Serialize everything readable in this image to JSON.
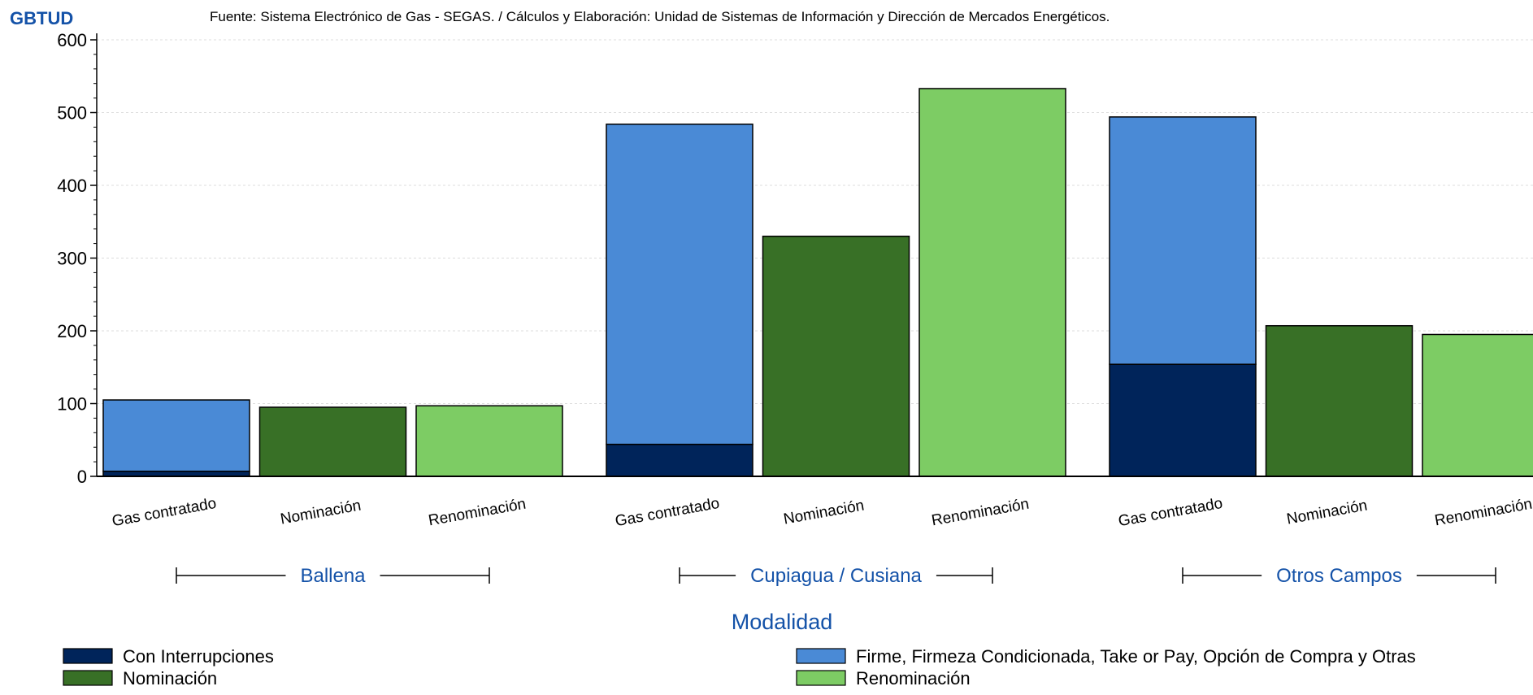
{
  "chart_data": {
    "type": "bar",
    "stacked": true,
    "source": "Fuente: Sistema Electrónico de Gas - SEGAS. / Cálculos y Elaboración: Unidad de Sistemas de Información y Dirección de Mercados Energéticos.",
    "ylabel": "GBTUD",
    "xlabel": "Modalidad",
    "ylim": [
      0,
      600
    ],
    "yticks": [
      0,
      100,
      200,
      300,
      400,
      500,
      600
    ],
    "grid": true,
    "legend_position": "bottom",
    "groups": [
      {
        "name": "Ballena",
        "bars": [
          {
            "label": "Gas contratado",
            "segments": [
              {
                "series": "Con Interrupciones",
                "value": 7
              },
              {
                "series": "Firme, Firmeza Condicionada, Take or Pay, Opción de Compra y Otras",
                "value": 98
              }
            ]
          },
          {
            "label": "Nominación",
            "segments": [
              {
                "series": "Nominación",
                "value": 95
              }
            ]
          },
          {
            "label": "Renominación",
            "segments": [
              {
                "series": "Renominación",
                "value": 97
              }
            ]
          }
        ]
      },
      {
        "name": "Cupiagua / Cusiana",
        "bars": [
          {
            "label": "Gas contratado",
            "segments": [
              {
                "series": "Con Interrupciones",
                "value": 44
              },
              {
                "series": "Firme, Firmeza Condicionada, Take or Pay, Opción de Compra y Otras",
                "value": 440
              }
            ]
          },
          {
            "label": "Nominación",
            "segments": [
              {
                "series": "Nominación",
                "value": 330
              }
            ]
          },
          {
            "label": "Renominación",
            "segments": [
              {
                "series": "Renominación",
                "value": 533
              }
            ]
          }
        ]
      },
      {
        "name": "Otros Campos",
        "bars": [
          {
            "label": "Gas contratado",
            "segments": [
              {
                "series": "Con Interrupciones",
                "value": 154
              },
              {
                "series": "Firme, Firmeza Condicionada, Take or Pay, Opción de Compra y Otras",
                "value": 340
              }
            ]
          },
          {
            "label": "Nominación",
            "segments": [
              {
                "series": "Nominación",
                "value": 207
              }
            ]
          },
          {
            "label": "Renominación",
            "segments": [
              {
                "series": "Renominación",
                "value": 195
              }
            ]
          }
        ]
      }
    ],
    "series": [
      {
        "name": "Con Interrupciones",
        "color": "#00245a"
      },
      {
        "name": "Firme, Firmeza Condicionada, Take or Pay, Opción de Compra y Otras",
        "color": "#4a8ad6"
      },
      {
        "name": "Nominación",
        "color": "#387026"
      },
      {
        "name": "Renominación",
        "color": "#7dcc64"
      }
    ],
    "colors": {
      "label_blue": "#1452a8",
      "axis": "#000000",
      "grid": "#dddddd"
    }
  }
}
